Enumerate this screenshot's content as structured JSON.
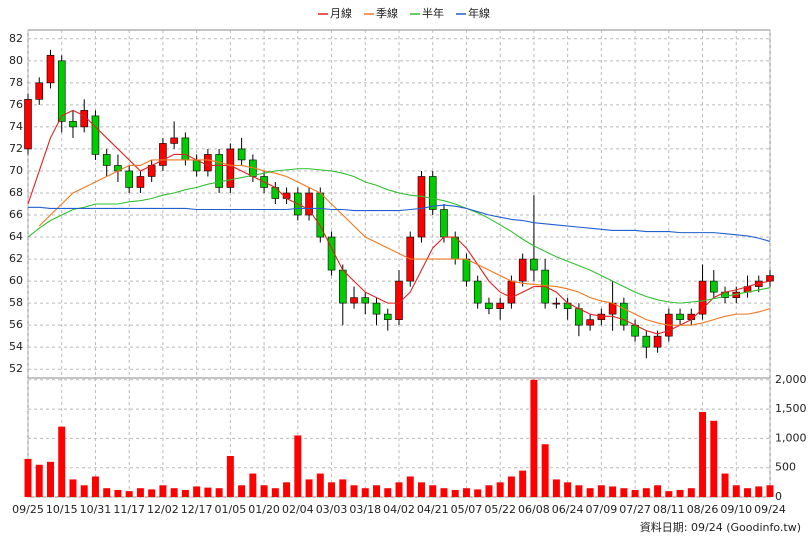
{
  "chart_data": {
    "type": "candlestick",
    "legend": [
      {
        "name": "月線",
        "color": "#e02020"
      },
      {
        "name": "季線",
        "color": "#f07820"
      },
      {
        "name": "半年",
        "color": "#30c030"
      },
      {
        "name": "年線",
        "color": "#2060d0"
      }
    ],
    "categories": [
      "09/25",
      null,
      null,
      "10/15",
      null,
      null,
      "10/31",
      null,
      null,
      "11/17",
      null,
      null,
      "12/02",
      null,
      null,
      "12/17",
      null,
      null,
      "01/05",
      null,
      null,
      "01/20",
      null,
      null,
      "02/04",
      null,
      null,
      "03/03",
      null,
      null,
      "03/18",
      null,
      null,
      "04/02",
      null,
      null,
      "04/21",
      null,
      null,
      "05/07",
      null,
      null,
      "05/22",
      null,
      null,
      "06/08",
      null,
      null,
      "06/24",
      null,
      null,
      "07/09",
      null,
      null,
      "07/27",
      null,
      null,
      "08/11",
      null,
      null,
      "08/26",
      null,
      null,
      "09/10",
      null,
      null,
      "09/24"
    ],
    "open": [
      72,
      76.5,
      78,
      80,
      74.5,
      74,
      75,
      71.5,
      70.5,
      70,
      68.5,
      69.5,
      70.5,
      72.5,
      73,
      71,
      70,
      71.5,
      68.5,
      72,
      71,
      69.5,
      68.5,
      67.5,
      68,
      66,
      68,
      64,
      61,
      58,
      58.5,
      58,
      57,
      56.5,
      60,
      64,
      69.5,
      66.5,
      64,
      62,
      60,
      58,
      57.5,
      58,
      60,
      62,
      61,
      58,
      58,
      57.5,
      56,
      56.5,
      57,
      58,
      56,
      55,
      54,
      55,
      57,
      56.5,
      57,
      60,
      59,
      58.5,
      59,
      59.5,
      60
    ],
    "high": [
      77,
      78.5,
      81,
      80.5,
      75.5,
      76.5,
      75.5,
      72,
      71.5,
      70.5,
      70,
      71,
      73,
      74.5,
      73.5,
      71.5,
      72,
      72,
      72.5,
      73,
      71.5,
      70,
      69,
      68.5,
      68.5,
      68.5,
      68.5,
      64.5,
      61.5,
      59.5,
      59,
      58.5,
      57.5,
      61,
      64.5,
      70,
      70,
      67,
      64.5,
      62.5,
      60.5,
      58.5,
      58.5,
      60.5,
      62.5,
      67.8,
      62,
      58.5,
      58.5,
      58,
      57,
      57.5,
      60,
      58.5,
      56.5,
      55.5,
      55.5,
      57.5,
      57.5,
      57.5,
      61.5,
      61,
      59.5,
      59.5,
      60.5,
      60.5,
      61
    ],
    "low": [
      71.5,
      76,
      77.5,
      73.5,
      73,
      73.5,
      71,
      69.5,
      69,
      68,
      68,
      69,
      70,
      72,
      70.5,
      69.5,
      69.5,
      68,
      68,
      70.5,
      69,
      68,
      67,
      67,
      65.5,
      65.5,
      63.5,
      60.5,
      56,
      57.5,
      57,
      56,
      55.5,
      56,
      59.5,
      63.5,
      66,
      63.5,
      61.5,
      59.5,
      57.5,
      57,
      56.5,
      57.5,
      59.5,
      60,
      57.5,
      57.5,
      56.5,
      55,
      55.5,
      56,
      55.5,
      55.5,
      54.5,
      53,
      53.5,
      54.5,
      56,
      56,
      56.5,
      58.5,
      58,
      58,
      58.5,
      59,
      59.5
    ],
    "close": [
      76.5,
      78,
      80.5,
      74.5,
      74,
      75.5,
      71.5,
      70.5,
      70,
      68.5,
      69.5,
      70.5,
      72.5,
      73,
      71,
      70,
      71.5,
      68.5,
      72,
      71,
      69.5,
      68.5,
      67.5,
      68,
      66,
      68,
      64,
      61,
      58,
      58.5,
      58,
      57,
      56.5,
      60,
      64,
      69.5,
      66.5,
      64,
      62,
      60,
      58,
      57.5,
      58,
      60,
      62,
      61,
      58,
      58,
      57.5,
      56,
      56.5,
      57,
      58,
      56,
      55,
      54,
      55,
      57,
      56.5,
      57,
      60,
      59,
      58.5,
      59,
      59.5,
      60,
      60.5
    ],
    "volume": [
      650,
      550,
      600,
      1200,
      300,
      200,
      350,
      150,
      120,
      100,
      150,
      130,
      200,
      150,
      120,
      180,
      160,
      150,
      700,
      200,
      400,
      200,
      150,
      250,
      1050,
      300,
      400,
      250,
      300,
      200,
      150,
      200,
      150,
      250,
      350,
      250,
      200,
      150,
      120,
      150,
      130,
      200,
      250,
      350,
      450,
      2000,
      900,
      300,
      250,
      200,
      150,
      200,
      180,
      150,
      120,
      150,
      200,
      100,
      120,
      150,
      1450,
      1300,
      400,
      200,
      150,
      180,
      200
    ],
    "ma": [
      [
        67,
        70,
        73,
        75,
        75.5,
        75,
        74,
        73,
        72,
        71,
        70,
        70.5,
        71,
        71.5,
        71.5,
        71,
        70.5,
        70.5,
        70.5,
        70,
        69.5,
        69,
        68.5,
        67.5,
        67,
        66.5,
        65,
        63,
        61,
        60,
        59,
        58.5,
        58,
        58,
        59,
        61,
        63,
        64,
        64,
        63,
        61.5,
        60,
        59,
        58.5,
        59,
        59.5,
        59.5,
        59,
        58,
        57.5,
        57,
        56.8,
        56.8,
        56.5,
        56,
        55.5,
        55.2,
        55.5,
        56,
        56.5,
        57.5,
        58.5,
        59,
        59.2,
        59.5,
        59.8,
        60
      ],
      [
        null,
        65,
        66,
        67,
        68,
        68.5,
        69,
        69.5,
        70,
        70.5,
        70.5,
        71,
        71,
        71,
        71,
        71,
        71,
        70.8,
        70.5,
        70.5,
        70.3,
        70,
        69.8,
        69.5,
        69,
        68.5,
        68,
        67,
        66,
        65,
        64,
        63.5,
        63,
        62.5,
        62,
        62,
        62,
        62,
        62,
        62,
        61.5,
        61,
        60.5,
        60,
        59.8,
        59.7,
        59.6,
        59.5,
        59.3,
        59,
        58.5,
        58.2,
        58,
        57.5,
        57,
        56.5,
        56.2,
        56,
        56,
        56,
        56.2,
        56.5,
        56.8,
        57,
        57,
        57.2,
        57.5
      ],
      [
        64,
        64.8,
        65.5,
        66,
        66.5,
        66.7,
        67,
        67,
        67,
        67.2,
        67.3,
        67.5,
        67.8,
        68,
        68.3,
        68.5,
        68.8,
        69,
        69.2,
        69.4,
        69.6,
        69.8,
        70,
        70.1,
        70.2,
        70.2,
        70.1,
        70,
        69.8,
        69.5,
        69,
        68.7,
        68.3,
        68,
        67.8,
        67.7,
        67.5,
        67.3,
        67,
        66.6,
        66.2,
        65.7,
        65.1,
        64.5,
        63.8,
        63.2,
        62.7,
        62.2,
        61.8,
        61.4,
        61,
        60.5,
        60,
        59.5,
        59,
        58.6,
        58.3,
        58.1,
        58,
        58.1,
        58.2,
        58.4,
        58.6,
        58.8,
        59,
        59.2,
        59.4
      ],
      [
        66.7,
        66.7,
        66.6,
        66.6,
        66.6,
        66.6,
        66.6,
        66.6,
        66.6,
        66.6,
        66.6,
        66.6,
        66.6,
        66.6,
        66.6,
        66.5,
        66.5,
        66.5,
        66.5,
        66.5,
        66.5,
        66.5,
        66.5,
        66.5,
        66.6,
        66.6,
        66.6,
        66.5,
        66.5,
        66.4,
        66.4,
        66.4,
        66.4,
        66.4,
        66.5,
        66.6,
        66.8,
        66.9,
        66.8,
        66.6,
        66.3,
        66,
        65.8,
        65.6,
        65.5,
        65.3,
        65.2,
        65.1,
        65,
        64.9,
        64.8,
        64.7,
        64.6,
        64.6,
        64.6,
        64.5,
        64.5,
        64.5,
        64.4,
        64.4,
        64.4,
        64.4,
        64.3,
        64.2,
        64.1,
        63.9,
        63.6
      ]
    ],
    "up_color": "#ff0000",
    "down_color": "#00cc00",
    "volume_color": "#ff0000",
    "ylim": [
      51.2,
      82.8
    ],
    "yticks": [
      52,
      54,
      56,
      58,
      60,
      62,
      64,
      66,
      68,
      70,
      72,
      74,
      76,
      78,
      80,
      82
    ],
    "y2lim": [
      0,
      2030
    ],
    "y2ticks": [
      0,
      500,
      {
        "value": 1000,
        "label": "1,000"
      },
      {
        "value": 1500,
        "label": "1,500"
      },
      {
        "value": 2000,
        "label": "2,000"
      }
    ],
    "grid": true,
    "footer": "資料日期: 09/24 (Goodinfo.tw)"
  }
}
